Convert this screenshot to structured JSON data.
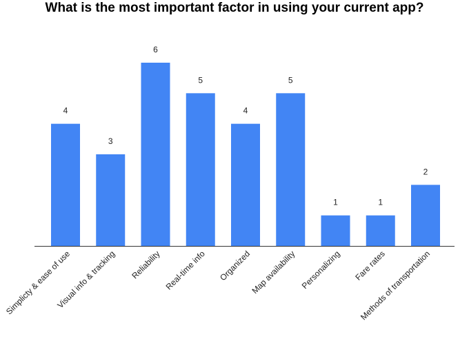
{
  "chart_data": {
    "type": "bar",
    "title": "What is the most important factor in using your current app?",
    "categories": [
      "Simplicty & ease of use",
      "Visual info & tracking",
      "Reliability",
      "Real-time info",
      "Organized",
      "Map availability",
      "Personalizing",
      "Fare rates",
      "Methods of transportation"
    ],
    "values": [
      4,
      3,
      6,
      5,
      4,
      5,
      1,
      1,
      2
    ],
    "ylim": [
      0,
      6
    ],
    "xlabel": "",
    "ylabel": "",
    "grid": false,
    "legend": "none",
    "colors": {
      "bar": "#4285f4"
    }
  }
}
